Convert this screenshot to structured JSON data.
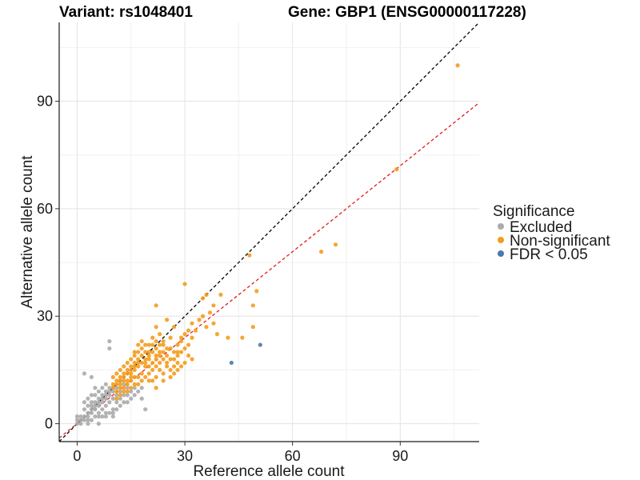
{
  "chart_data": {
    "type": "scatter",
    "title_left": "Variant: rs1048401",
    "title_right": "Gene: GBP1 (ENSG00000117228)",
    "xlabel": "Reference allele count",
    "ylabel": "Alternative allele count",
    "xlim": [
      -5,
      112
    ],
    "ylim": [
      -5,
      112
    ],
    "xticks": [
      0,
      30,
      60,
      90
    ],
    "yticks": [
      0,
      30,
      60,
      90
    ],
    "grid": true,
    "legend": {
      "title": "Significance",
      "position": "right",
      "entries": [
        {
          "label": "Excluded",
          "color": "#ababab"
        },
        {
          "label": "Non-significant",
          "color": "#f39c1e"
        },
        {
          "label": "FDR < 0.05",
          "color": "#4a7aa9"
        }
      ]
    },
    "reference_lines": [
      {
        "name": "identity",
        "slope": 1.0,
        "intercept": 0,
        "color": "#000000",
        "dash": "dashed"
      },
      {
        "name": "fit",
        "slope": 0.8,
        "intercept": 0,
        "color": "#e41a1c",
        "dash": "dashed"
      }
    ],
    "series": [
      {
        "name": "Excluded",
        "color": "#ababab",
        "points": [
          [
            0,
            0
          ],
          [
            1,
            1
          ],
          [
            1,
            2
          ],
          [
            2,
            1
          ],
          [
            2,
            2
          ],
          [
            3,
            2
          ],
          [
            3,
            3
          ],
          [
            2,
            4
          ],
          [
            4,
            3
          ],
          [
            4,
            4
          ],
          [
            5,
            4
          ],
          [
            4,
            5
          ],
          [
            5,
            5
          ],
          [
            6,
            5
          ],
          [
            5,
            6
          ],
          [
            6,
            6
          ],
          [
            7,
            6
          ],
          [
            6,
            7
          ],
          [
            7,
            7
          ],
          [
            8,
            7
          ],
          [
            7,
            8
          ],
          [
            8,
            8
          ],
          [
            9,
            8
          ],
          [
            8,
            9
          ],
          [
            9,
            9
          ],
          [
            10,
            9
          ],
          [
            9,
            10
          ],
          [
            10,
            10
          ],
          [
            11,
            10
          ],
          [
            6,
            3
          ],
          [
            7,
            4
          ],
          [
            8,
            5
          ],
          [
            9,
            6
          ],
          [
            10,
            7
          ],
          [
            11,
            8
          ],
          [
            12,
            9
          ],
          [
            5,
            2
          ],
          [
            3,
            1
          ],
          [
            4,
            1
          ],
          [
            6,
            2
          ],
          [
            8,
            3
          ],
          [
            10,
            4
          ],
          [
            3,
            5
          ],
          [
            4,
            6
          ],
          [
            2,
            6
          ],
          [
            5,
            8
          ],
          [
            6,
            9
          ],
          [
            4,
            8
          ],
          [
            7,
            10
          ],
          [
            8,
            11
          ],
          [
            3,
            7
          ],
          [
            5,
            10
          ],
          [
            2,
            14
          ],
          [
            4,
            13
          ],
          [
            9,
            23
          ],
          [
            9,
            21
          ],
          [
            12,
            12
          ],
          [
            13,
            11
          ],
          [
            14,
            10
          ],
          [
            15,
            9
          ],
          [
            16,
            8
          ],
          [
            18,
            7
          ],
          [
            19,
            4
          ],
          [
            16,
            10
          ],
          [
            14,
            8
          ],
          [
            13,
            6
          ],
          [
            12,
            5
          ],
          [
            11,
            4
          ],
          [
            10,
            2
          ],
          [
            1,
            0
          ],
          [
            3,
            0
          ],
          [
            0,
            2
          ],
          [
            0,
            1
          ],
          [
            6,
            0
          ],
          [
            7,
            2
          ],
          [
            8,
            2
          ],
          [
            9,
            3
          ],
          [
            10,
            3
          ],
          [
            11,
            6
          ],
          [
            12,
            7
          ],
          [
            13,
            8
          ],
          [
            14,
            6
          ],
          [
            15,
            7
          ],
          [
            17,
            9
          ],
          [
            18,
            10
          ]
        ]
      },
      {
        "name": "Non-significant",
        "color": "#f39c1e",
        "points": [
          [
            106,
            100
          ],
          [
            89,
            71
          ],
          [
            72,
            50
          ],
          [
            68,
            48
          ],
          [
            48,
            47
          ],
          [
            50,
            37
          ],
          [
            49,
            33
          ],
          [
            49,
            27
          ],
          [
            46,
            24
          ],
          [
            42,
            24
          ],
          [
            30,
            39
          ],
          [
            36,
            36
          ],
          [
            35,
            35
          ],
          [
            40,
            36
          ],
          [
            38,
            33
          ],
          [
            22,
            33
          ],
          [
            25,
            29
          ],
          [
            27,
            27
          ],
          [
            30,
            25
          ],
          [
            32,
            24
          ],
          [
            31,
            22
          ],
          [
            29,
            20
          ],
          [
            30,
            17
          ],
          [
            28,
            19
          ],
          [
            26,
            21
          ],
          [
            27,
            18
          ],
          [
            24,
            23
          ],
          [
            23,
            25
          ],
          [
            22,
            27
          ],
          [
            21,
            24
          ],
          [
            20,
            22
          ],
          [
            19,
            20
          ],
          [
            18,
            21
          ],
          [
            17,
            22
          ],
          [
            16,
            19
          ],
          [
            15,
            18
          ],
          [
            14,
            17
          ],
          [
            13,
            16
          ],
          [
            12,
            15
          ],
          [
            11,
            14
          ],
          [
            10,
            13
          ],
          [
            11,
            11
          ],
          [
            12,
            10
          ],
          [
            13,
            12
          ],
          [
            14,
            14
          ],
          [
            15,
            13
          ],
          [
            16,
            15
          ],
          [
            17,
            16
          ],
          [
            18,
            17
          ],
          [
            19,
            18
          ],
          [
            20,
            19
          ],
          [
            21,
            20
          ],
          [
            22,
            21
          ],
          [
            23,
            22
          ],
          [
            24,
            20
          ],
          [
            25,
            19
          ],
          [
            26,
            18
          ],
          [
            27,
            16
          ],
          [
            28,
            15
          ],
          [
            25,
            16
          ],
          [
            24,
            14
          ],
          [
            23,
            15
          ],
          [
            22,
            13
          ],
          [
            21,
            12
          ],
          [
            20,
            14
          ],
          [
            19,
            16
          ],
          [
            18,
            12
          ],
          [
            17,
            13
          ],
          [
            16,
            11
          ],
          [
            15,
            10
          ],
          [
            14,
            11
          ],
          [
            13,
            9
          ],
          [
            12,
            11
          ],
          [
            11,
            12
          ],
          [
            10,
            11
          ],
          [
            11,
            9
          ],
          [
            12,
            13
          ],
          [
            13,
            14
          ],
          [
            14,
            15
          ],
          [
            15,
            16
          ],
          [
            16,
            17
          ],
          [
            17,
            18
          ],
          [
            18,
            19
          ],
          [
            19,
            17
          ],
          [
            20,
            16
          ],
          [
            21,
            15
          ],
          [
            22,
            16
          ],
          [
            23,
            17
          ],
          [
            24,
            18
          ],
          [
            25,
            17
          ],
          [
            26,
            15
          ],
          [
            27,
            14
          ],
          [
            28,
            17
          ],
          [
            29,
            16
          ],
          [
            20,
            18
          ],
          [
            21,
            17
          ],
          [
            22,
            18
          ],
          [
            23,
            19
          ],
          [
            19,
            13
          ],
          [
            18,
            14
          ],
          [
            17,
            11
          ],
          [
            16,
            13
          ],
          [
            15,
            12
          ],
          [
            14,
            12
          ],
          [
            13,
            13
          ],
          [
            12,
            12
          ],
          [
            20,
            12
          ],
          [
            22,
            19
          ],
          [
            24,
            22
          ],
          [
            26,
            24
          ],
          [
            28,
            20
          ],
          [
            30,
            21
          ],
          [
            31,
            19
          ],
          [
            32,
            18
          ],
          [
            29,
            23
          ],
          [
            33,
            26
          ],
          [
            34,
            29
          ],
          [
            35,
            30
          ],
          [
            37,
            31
          ],
          [
            36,
            27
          ],
          [
            38,
            28
          ],
          [
            39,
            25
          ],
          [
            19,
            22
          ],
          [
            18,
            23
          ],
          [
            17,
            20
          ],
          [
            16,
            20
          ],
          [
            15,
            14
          ],
          [
            22,
            10
          ],
          [
            24,
            12
          ],
          [
            26,
            13
          ],
          [
            21,
            22
          ],
          [
            22,
            23
          ],
          [
            13,
            10
          ],
          [
            12,
            8
          ],
          [
            11,
            7
          ],
          [
            10,
            10
          ],
          [
            14,
            9
          ],
          [
            15,
            15
          ],
          [
            16,
            16
          ],
          [
            17,
            17
          ],
          [
            20,
            20
          ],
          [
            23,
            20
          ],
          [
            25,
            21
          ],
          [
            27,
            20
          ],
          [
            28,
            22
          ],
          [
            29,
            24
          ],
          [
            31,
            26
          ],
          [
            32,
            28
          ]
        ]
      },
      {
        "name": "FDR < 0.05",
        "color": "#4a7aa9",
        "points": [
          [
            43,
            17
          ],
          [
            51,
            22
          ]
        ]
      }
    ]
  }
}
